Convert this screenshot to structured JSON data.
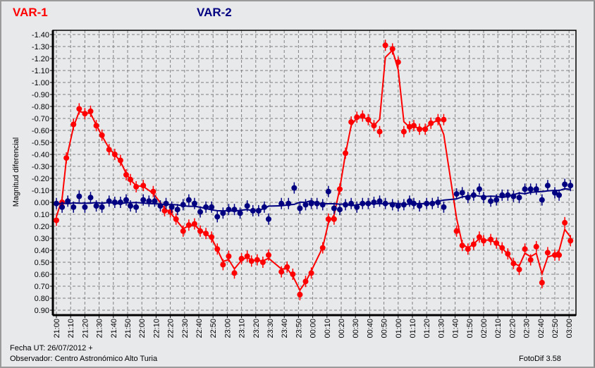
{
  "chart_data": {
    "type": "scatter",
    "title": "",
    "ylabel": "Magnitud diferencial",
    "xlabel": "",
    "ylim": [
      -1.4,
      0.9
    ],
    "y_inverted": true,
    "grid": true,
    "y_ticks": [
      "-1.40",
      "-1.30",
      "-1.20",
      "-1.10",
      "-1.00",
      "-0.90",
      "-0.80",
      "-0.70",
      "-0.60",
      "-0.50",
      "-0.40",
      "-0.30",
      "-0.20",
      "-0.10",
      "0.00",
      "0.10",
      "0.20",
      "0.30",
      "0.40",
      "0.50",
      "0.60",
      "0.70",
      "0.80",
      "0.90"
    ],
    "x_ticks": [
      "21:00",
      "21:10",
      "21:20",
      "21:30",
      "21:40",
      "21:50",
      "22:00",
      "22:10",
      "22:20",
      "22:30",
      "22:40",
      "22:50",
      "23:00",
      "23:10",
      "23:20",
      "23:30",
      "23:40",
      "23:50",
      "00:00",
      "00:10",
      "00:20",
      "00:30",
      "00:40",
      "00:50",
      "01:00",
      "01:10",
      "01:20",
      "01:30",
      "01:40",
      "01:50",
      "02:00",
      "02:10",
      "02:20",
      "02:30",
      "02:40",
      "02:50",
      "03:00"
    ],
    "legend_placement": "top",
    "series": [
      {
        "name": "VAR-1",
        "color": "#ff0000",
        "points": [
          [
            "21:00",
            0.15
          ],
          [
            "21:04",
            0.0
          ],
          [
            "21:07",
            -0.37
          ],
          [
            "21:12",
            -0.65
          ],
          [
            "21:16",
            -0.78
          ],
          [
            "21:20",
            -0.74
          ],
          [
            "21:24",
            -0.76
          ],
          [
            "21:28",
            -0.64
          ],
          [
            "21:32",
            -0.56
          ],
          [
            "21:37",
            -0.44
          ],
          [
            "21:41",
            -0.4
          ],
          [
            "21:45",
            -0.35
          ],
          [
            "21:49",
            -0.23
          ],
          [
            "21:52",
            -0.19
          ],
          [
            "21:56",
            -0.13
          ],
          [
            "22:01",
            -0.14
          ],
          [
            "22:08",
            -0.09
          ],
          [
            "22:16",
            0.07
          ],
          [
            "22:20",
            0.08
          ],
          [
            "22:24",
            0.14
          ],
          [
            "22:29",
            0.24
          ],
          [
            "22:33",
            0.19
          ],
          [
            "22:37",
            0.18
          ],
          [
            "22:41",
            0.24
          ],
          [
            "22:45",
            0.26
          ],
          [
            "22:49",
            0.29
          ],
          [
            "22:53",
            0.39
          ],
          [
            "22:57",
            0.52
          ],
          [
            "23:01",
            0.45
          ],
          [
            "23:05",
            0.59
          ],
          [
            "23:10",
            0.47
          ],
          [
            "23:14",
            0.45
          ],
          [
            "23:17",
            0.49
          ],
          [
            "23:21",
            0.48
          ],
          [
            "23:25",
            0.5
          ],
          [
            "23:29",
            0.44
          ],
          [
            "23:38",
            0.58
          ],
          [
            "23:42",
            0.54
          ],
          [
            "23:46",
            0.6
          ],
          [
            "23:51",
            0.77
          ],
          [
            "23:55",
            0.66
          ],
          [
            "23:59",
            0.59
          ],
          [
            "00:07",
            0.38
          ],
          [
            "00:11",
            0.14
          ],
          [
            "00:15",
            0.14
          ],
          [
            "00:19",
            -0.11
          ],
          [
            "00:23",
            -0.41
          ],
          [
            "00:27",
            -0.67
          ],
          [
            "00:31",
            -0.71
          ],
          [
            "00:35",
            -0.72
          ],
          [
            "00:39",
            -0.69
          ],
          [
            "00:43",
            -0.64
          ],
          [
            "00:47",
            -0.59
          ],
          [
            "00:51",
            -1.31
          ],
          [
            "00:56",
            -1.28
          ],
          [
            "01:00",
            -1.17
          ],
          [
            "01:04",
            -0.59
          ],
          [
            "01:08",
            -0.63
          ],
          [
            "01:11",
            -0.64
          ],
          [
            "01:15",
            -0.61
          ],
          [
            "01:19",
            -0.61
          ],
          [
            "01:23",
            -0.66
          ],
          [
            "01:28",
            -0.69
          ],
          [
            "01:32",
            -0.69
          ],
          [
            "01:41",
            0.24
          ],
          [
            "01:45",
            0.36
          ],
          [
            "01:49",
            0.39
          ],
          [
            "01:53",
            0.35
          ],
          [
            "01:57",
            0.29
          ],
          [
            "02:00",
            0.32
          ],
          [
            "02:05",
            0.31
          ],
          [
            "02:09",
            0.34
          ],
          [
            "02:13",
            0.38
          ],
          [
            "02:17",
            0.43
          ],
          [
            "02:21",
            0.51
          ],
          [
            "02:25",
            0.56
          ],
          [
            "02:29",
            0.39
          ],
          [
            "02:33",
            0.48
          ],
          [
            "02:37",
            0.37
          ],
          [
            "02:41",
            0.67
          ],
          [
            "02:45",
            0.42
          ],
          [
            "02:50",
            0.44
          ],
          [
            "02:53",
            0.44
          ],
          [
            "02:57",
            0.17
          ],
          [
            "03:01",
            0.32
          ]
        ]
      },
      {
        "name": "VAR-2",
        "color": "#000080",
        "points": [
          [
            "21:00",
            0.01
          ],
          [
            "21:04",
            0.04
          ],
          [
            "21:08",
            -0.01
          ],
          [
            "21:12",
            0.04
          ],
          [
            "21:16",
            -0.05
          ],
          [
            "21:20",
            0.04
          ],
          [
            "21:24",
            -0.04
          ],
          [
            "21:28",
            0.03
          ],
          [
            "21:32",
            0.04
          ],
          [
            "21:37",
            -0.01
          ],
          [
            "21:41",
            0.0
          ],
          [
            "21:45",
            0.0
          ],
          [
            "21:49",
            -0.02
          ],
          [
            "21:52",
            0.03
          ],
          [
            "21:56",
            0.04
          ],
          [
            "22:01",
            -0.02
          ],
          [
            "22:05",
            -0.01
          ],
          [
            "22:09",
            -0.01
          ],
          [
            "22:13",
            0.03
          ],
          [
            "22:17",
            0.01
          ],
          [
            "22:21",
            0.04
          ],
          [
            "22:25",
            0.06
          ],
          [
            "22:29",
            0.02
          ],
          [
            "22:33",
            -0.02
          ],
          [
            "22:37",
            0.01
          ],
          [
            "22:41",
            0.08
          ],
          [
            "22:45",
            0.04
          ],
          [
            "22:49",
            0.04
          ],
          [
            "22:53",
            0.12
          ],
          [
            "22:57",
            0.09
          ],
          [
            "23:01",
            0.06
          ],
          [
            "23:05",
            0.06
          ],
          [
            "23:09",
            0.09
          ],
          [
            "23:14",
            0.03
          ],
          [
            "23:18",
            0.07
          ],
          [
            "23:22",
            0.07
          ],
          [
            "23:26",
            0.04
          ],
          [
            "23:29",
            0.14
          ],
          [
            "23:38",
            0.01
          ],
          [
            "23:43",
            0.01
          ],
          [
            "23:47",
            -0.12
          ],
          [
            "23:51",
            0.05
          ],
          [
            "23:55",
            0.02
          ],
          [
            "23:59",
            0.01
          ],
          [
            "00:03",
            0.01
          ],
          [
            "00:07",
            0.02
          ],
          [
            "00:11",
            -0.09
          ],
          [
            "00:15",
            0.05
          ],
          [
            "00:19",
            0.06
          ],
          [
            "00:23",
            0.02
          ],
          [
            "00:27",
            0.01
          ],
          [
            "00:31",
            0.04
          ],
          [
            "00:35",
            0.01
          ],
          [
            "00:39",
            0.01
          ],
          [
            "00:43",
            0.0
          ],
          [
            "00:47",
            -0.01
          ],
          [
            "00:51",
            0.01
          ],
          [
            "00:56",
            0.02
          ],
          [
            "01:00",
            0.03
          ],
          [
            "01:04",
            0.02
          ],
          [
            "01:08",
            -0.01
          ],
          [
            "01:11",
            0.01
          ],
          [
            "01:15",
            0.03
          ],
          [
            "01:20",
            0.01
          ],
          [
            "01:24",
            0.01
          ],
          [
            "01:28",
            0.0
          ],
          [
            "01:32",
            0.04
          ],
          [
            "01:41",
            -0.07
          ],
          [
            "01:45",
            -0.08
          ],
          [
            "01:49",
            -0.04
          ],
          [
            "01:53",
            -0.06
          ],
          [
            "01:57",
            -0.11
          ],
          [
            "02:00",
            -0.04
          ],
          [
            "02:05",
            -0.01
          ],
          [
            "02:09",
            -0.02
          ],
          [
            "02:13",
            -0.06
          ],
          [
            "02:17",
            -0.06
          ],
          [
            "02:21",
            -0.05
          ],
          [
            "02:25",
            -0.04
          ],
          [
            "02:29",
            -0.11
          ],
          [
            "02:33",
            -0.11
          ],
          [
            "02:37",
            -0.11
          ],
          [
            "02:41",
            -0.02
          ],
          [
            "02:45",
            -0.14
          ],
          [
            "02:50",
            -0.08
          ],
          [
            "02:53",
            -0.06
          ],
          [
            "02:57",
            -0.15
          ],
          [
            "03:01",
            -0.14
          ]
        ]
      }
    ]
  },
  "legend": {
    "var1": "VAR-1",
    "var2": "VAR-2"
  },
  "footer": {
    "date": "Fecha UT: 26/07/2012 +",
    "observer": "Observador: Centro Astronómico Alto Turia",
    "software": "FotoDif 3.58"
  }
}
